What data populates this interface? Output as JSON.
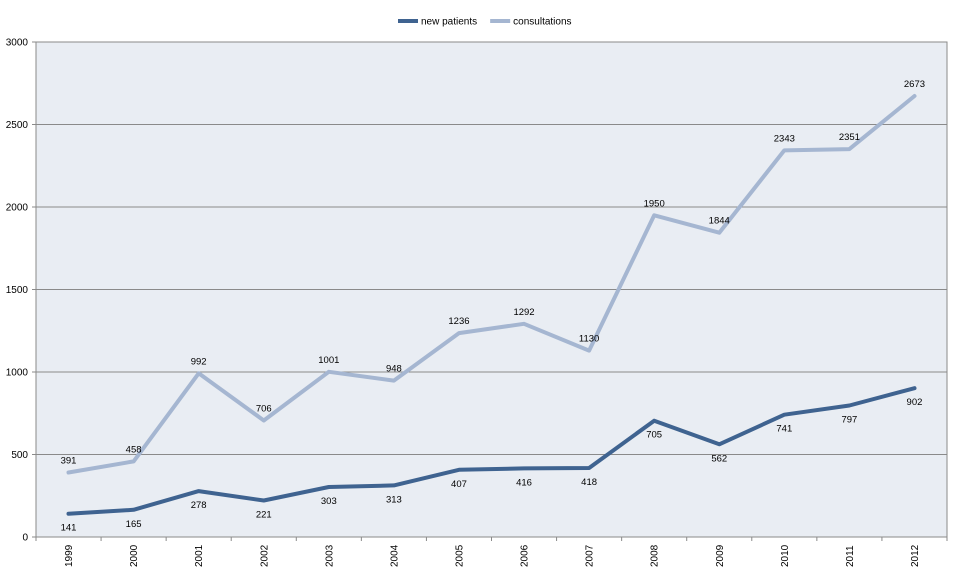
{
  "chart_data": {
    "type": "line",
    "x": [
      "1999",
      "2000",
      "2001",
      "2002",
      "2003",
      "2004",
      "2005",
      "2006",
      "2007",
      "2008",
      "2009",
      "2010",
      "2011",
      "2012"
    ],
    "series": [
      {
        "name": "new patients",
        "color": "#3F6390",
        "values": [
          141,
          165,
          278,
          221,
          303,
          313,
          407,
          416,
          418,
          705,
          562,
          741,
          797,
          902
        ]
      },
      {
        "name": "consultations",
        "color": "#A5B6D1",
        "values": [
          391,
          458,
          992,
          706,
          1001,
          948,
          1236,
          1292,
          1130,
          1950,
          1844,
          2343,
          2351,
          2673
        ]
      }
    ],
    "yticks": [
      "0",
      "500",
      "1000",
      "1500",
      "2000",
      "2500",
      "3000"
    ],
    "ylim": [
      0,
      3000
    ],
    "grid": true,
    "legend_position": "top-center",
    "plot_background": "#E9EDF3"
  }
}
